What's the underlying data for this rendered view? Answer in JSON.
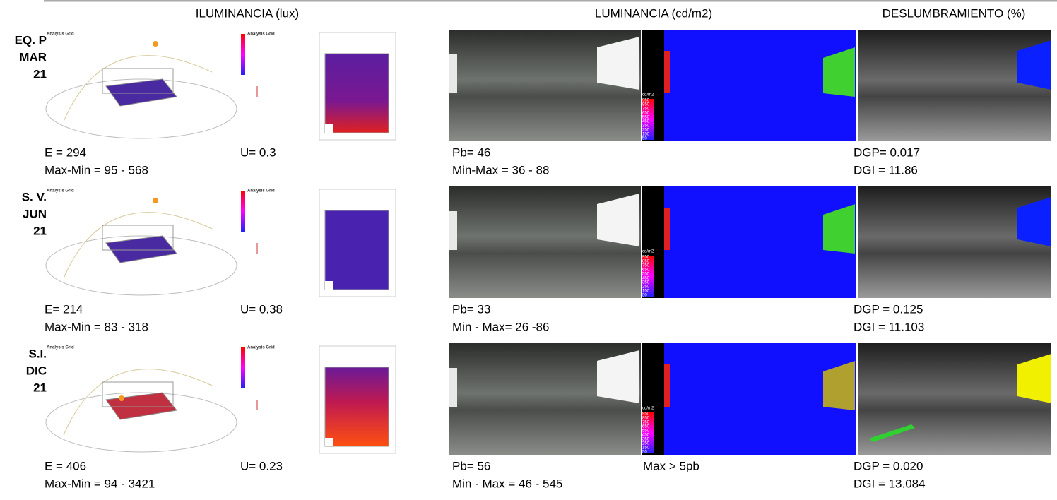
{
  "header": {
    "columns": [
      "ILUMINANCIA (lux)",
      "LUMINANCIA  (cd/m2)",
      "DESLUMBRAMIENTO (%)"
    ]
  },
  "image_caption": "Analysis Grid",
  "luminance_scale": {
    "unit": "cd/m2",
    "labels": [
      "950",
      "850",
      "750",
      "650",
      "550",
      "450",
      "350",
      "250",
      "150",
      "50"
    ]
  },
  "rows": [
    {
      "label": [
        "EQ. P",
        "MAR",
        "21"
      ],
      "illuminance": [
        "E = 294",
        "Max-Min = 95 - 568"
      ],
      "uniformity": "U= 0.3",
      "luminance": [
        "Pb= 46",
        "Min-Max = 36 - 88"
      ],
      "glare": [
        "DGP= 0.017",
        "DGI = 11.86"
      ]
    },
    {
      "label": [
        "S. V.",
        "JUN",
        "21"
      ],
      "illuminance": [
        "E= 214",
        "Max-Min = 83 - 318"
      ],
      "uniformity": "U= 0.38",
      "luminance": [
        "Pb= 33",
        "Min - Max= 26 -86"
      ],
      "glare": [
        "DGP = 0.125",
        "DGI = 11.103"
      ]
    },
    {
      "label": [
        "S.I.",
        "DIC",
        "21"
      ],
      "illuminance": [
        "E = 406",
        "Max-Min = 94 - 3421"
      ],
      "uniformity": "U= 0.23",
      "luminance": [
        "Pb= 56",
        "Min - Max = 46 - 545"
      ],
      "luminance_note": "Max > 5pb",
      "glare": [
        "DGP = 0.020",
        "DGI = 13.084"
      ]
    }
  ]
}
